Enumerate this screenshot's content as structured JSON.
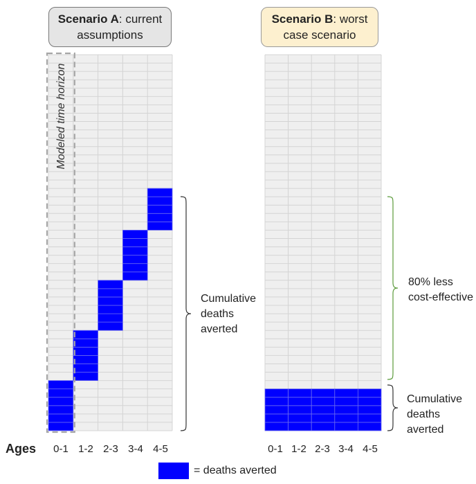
{
  "scenario_a": {
    "title_bold": "Scenario A",
    "title_rest": ": current assumptions",
    "horizon_label": "Modeled time horizon",
    "bracket_label": [
      "Cumulative",
      "deaths",
      "averted"
    ],
    "blocks": [
      {
        "col": 0,
        "row_start": 0,
        "row_end": 5
      },
      {
        "col": 1,
        "row_start": 6,
        "row_end": 11
      },
      {
        "col": 2,
        "row_start": 12,
        "row_end": 17
      },
      {
        "col": 3,
        "row_start": 18,
        "row_end": 23
      },
      {
        "col": 4,
        "row_start": 24,
        "row_end": 28
      }
    ]
  },
  "scenario_b": {
    "title_bold": "Scenario B",
    "title_rest": ": worst case scenario",
    "upper_bracket_label": [
      "80% less",
      "cost-effective"
    ],
    "lower_bracket_label": [
      "Cumulative",
      "deaths",
      "averted"
    ],
    "blocks": [
      {
        "col": 0,
        "row_start": 0,
        "row_end": 4
      },
      {
        "col": 1,
        "row_start": 0,
        "row_end": 4
      },
      {
        "col": 2,
        "row_start": 0,
        "row_end": 4
      },
      {
        "col": 3,
        "row_start": 0,
        "row_end": 4
      },
      {
        "col": 4,
        "row_start": 0,
        "row_end": 4
      }
    ]
  },
  "grid": {
    "columns": 5,
    "rows": 45
  },
  "axis": {
    "label": "Ages",
    "ticks": [
      "0-1",
      "1-2",
      "2-3",
      "3-4",
      "4-5"
    ]
  },
  "legend": {
    "text": "= deaths averted"
  },
  "colors": {
    "deaths_averted": "#0000ff",
    "grid_fill": "#efefef",
    "grid_line": "#d4d4d4",
    "header_a_bg": "#e5e5e5",
    "header_b_bg": "#fdf0cf",
    "bracket_a": "#333333",
    "bracket_b_upper": "#5a9a3a",
    "bracket_b_lower": "#333333"
  }
}
